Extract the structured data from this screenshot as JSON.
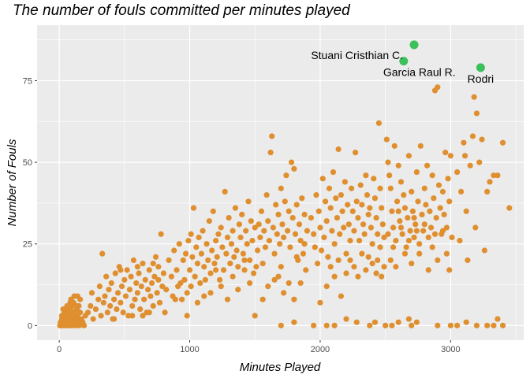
{
  "chart_data": {
    "type": "scatter",
    "title": "The number of fouls committed per minutes played",
    "xlabel": "Minutes Played",
    "ylabel": "Number of Fouls",
    "xlim": [
      -170,
      3560
    ],
    "ylim": [
      -4.5,
      92
    ],
    "xticks": [
      0,
      1000,
      2000,
      3000
    ],
    "yticks": [
      0,
      25,
      50,
      75
    ],
    "grid": true,
    "colors": {
      "points": "#df8f2f",
      "highlight": "#3cc059",
      "panel": "#ebebeb",
      "grid": "#ffffff"
    },
    "highlights": [
      {
        "name": "Stuani Cristhian  C.",
        "x": 2720,
        "y": 86,
        "label_anchor": "end",
        "label_pos": "left"
      },
      {
        "name": "Garcia Raul R.",
        "x": 2640,
        "y": 81,
        "label_anchor": "start",
        "label_pos": "below"
      },
      {
        "name": "Rodri",
        "x": 3230,
        "y": 79,
        "label_anchor": "middle",
        "label_pos": "below"
      }
    ],
    "points": [
      [
        5,
        0
      ],
      [
        10,
        1
      ],
      [
        15,
        0
      ],
      [
        20,
        2
      ],
      [
        25,
        0
      ],
      [
        30,
        1
      ],
      [
        35,
        3
      ],
      [
        40,
        0
      ],
      [
        45,
        2
      ],
      [
        50,
        1
      ],
      [
        55,
        0
      ],
      [
        60,
        4
      ],
      [
        65,
        2
      ],
      [
        70,
        0
      ],
      [
        75,
        1
      ],
      [
        80,
        3
      ],
      [
        85,
        0
      ],
      [
        90,
        5
      ],
      [
        95,
        2
      ],
      [
        100,
        1
      ],
      [
        105,
        0
      ],
      [
        110,
        3
      ],
      [
        115,
        4
      ],
      [
        120,
        2
      ],
      [
        125,
        1
      ],
      [
        130,
        0
      ],
      [
        135,
        5
      ],
      [
        140,
        3
      ],
      [
        145,
        2
      ],
      [
        150,
        6
      ],
      [
        155,
        0
      ],
      [
        160,
        4
      ],
      [
        170,
        2
      ],
      [
        180,
        1
      ],
      [
        190,
        0
      ],
      [
        200,
        3
      ],
      [
        30,
        5
      ],
      [
        60,
        6
      ],
      [
        90,
        8
      ],
      [
        110,
        7
      ],
      [
        140,
        9
      ],
      [
        50,
        3
      ],
      [
        70,
        5
      ],
      [
        100,
        4
      ],
      [
        130,
        6
      ],
      [
        160,
        8
      ],
      [
        80,
        1
      ],
      [
        120,
        2
      ],
      [
        150,
        1
      ],
      [
        40,
        4
      ],
      [
        20,
        3
      ],
      [
        85,
        7
      ],
      [
        115,
        9
      ],
      [
        65,
        3
      ],
      [
        95,
        6
      ],
      [
        220,
        4
      ],
      [
        240,
        6
      ],
      [
        250,
        10
      ],
      [
        260,
        2
      ],
      [
        280,
        5
      ],
      [
        300,
        8
      ],
      [
        310,
        12
      ],
      [
        320,
        3
      ],
      [
        340,
        7
      ],
      [
        350,
        9
      ],
      [
        360,
        15
      ],
      [
        370,
        4
      ],
      [
        380,
        11
      ],
      [
        390,
        6
      ],
      [
        400,
        13
      ],
      [
        410,
        2
      ],
      [
        420,
        8
      ],
      [
        430,
        16
      ],
      [
        440,
        5
      ],
      [
        450,
        10
      ],
      [
        460,
        18
      ],
      [
        470,
        7
      ],
      [
        480,
        12
      ],
      [
        490,
        4
      ],
      [
        500,
        14
      ],
      [
        510,
        9
      ],
      [
        520,
        17
      ],
      [
        530,
        3
      ],
      [
        540,
        11
      ],
      [
        550,
        15
      ],
      [
        560,
        6
      ],
      [
        570,
        20
      ],
      [
        580,
        8
      ],
      [
        590,
        13
      ],
      [
        600,
        10
      ],
      [
        610,
        16
      ],
      [
        620,
        5
      ],
      [
        630,
        12
      ],
      [
        640,
        19
      ],
      [
        650,
        8
      ],
      [
        660,
        14
      ],
      [
        670,
        4
      ],
      [
        680,
        11
      ],
      [
        690,
        17
      ],
      [
        700,
        9
      ],
      [
        710,
        13
      ],
      [
        720,
        6
      ],
      [
        730,
        15
      ],
      [
        740,
        21
      ],
      [
        750,
        10
      ],
      [
        760,
        18
      ],
      [
        770,
        7
      ],
      [
        780,
        28
      ],
      [
        790,
        12
      ],
      [
        800,
        16
      ],
      [
        330,
        22
      ],
      [
        420,
        2
      ],
      [
        470,
        17
      ],
      [
        560,
        3
      ],
      [
        600,
        18
      ],
      [
        640,
        3
      ],
      [
        690,
        4
      ],
      [
        720,
        19
      ],
      [
        760,
        14
      ],
      [
        810,
        4
      ],
      [
        820,
        11
      ],
      [
        840,
        20
      ],
      [
        860,
        15
      ],
      [
        870,
        9
      ],
      [
        880,
        23
      ],
      [
        900,
        17
      ],
      [
        910,
        12
      ],
      [
        920,
        25
      ],
      [
        940,
        8
      ],
      [
        950,
        20
      ],
      [
        960,
        14
      ],
      [
        970,
        22
      ],
      [
        980,
        10
      ],
      [
        990,
        26
      ],
      [
        1000,
        17
      ],
      [
        1010,
        12
      ],
      [
        1020,
        21
      ],
      [
        1030,
        36
      ],
      [
        1040,
        15
      ],
      [
        1050,
        24
      ],
      [
        1060,
        19
      ],
      [
        1070,
        27
      ],
      [
        1080,
        13
      ],
      [
        1090,
        22
      ],
      [
        1100,
        29
      ],
      [
        1110,
        18
      ],
      [
        1120,
        14
      ],
      [
        1130,
        25
      ],
      [
        1140,
        20
      ],
      [
        1150,
        32
      ],
      [
        1160,
        16
      ],
      [
        1170,
        23
      ],
      [
        1180,
        35
      ],
      [
        1190,
        19
      ],
      [
        1200,
        26
      ],
      [
        1210,
        21
      ],
      [
        1220,
        28
      ],
      [
        1230,
        14
      ],
      [
        1240,
        30
      ],
      [
        1250,
        24
      ],
      [
        1260,
        17
      ],
      [
        1270,
        41
      ],
      [
        1280,
        22
      ],
      [
        1290,
        27
      ],
      [
        1300,
        33
      ],
      [
        1310,
        19
      ],
      [
        1320,
        25
      ],
      [
        1330,
        29
      ],
      [
        1340,
        21
      ],
      [
        1350,
        36
      ],
      [
        1360,
        23
      ],
      [
        1370,
        18
      ],
      [
        1380,
        31
      ],
      [
        1390,
        27
      ],
      [
        1400,
        34
      ],
      [
        1410,
        22
      ],
      [
        1420,
        17
      ],
      [
        1430,
        29
      ],
      [
        1440,
        25
      ],
      [
        1450,
        38
      ],
      [
        1460,
        20
      ],
      [
        1470,
        32
      ],
      [
        1480,
        26
      ],
      [
        1490,
        16
      ],
      [
        1500,
        30
      ],
      [
        890,
        8
      ],
      [
        930,
        13
      ],
      [
        980,
        3
      ],
      [
        1010,
        28
      ],
      [
        1060,
        7
      ],
      [
        1110,
        9
      ],
      [
        1160,
        10
      ],
      [
        1200,
        17
      ],
      [
        1240,
        12
      ],
      [
        1290,
        8
      ],
      [
        1330,
        15
      ],
      [
        1370,
        11
      ],
      [
        1420,
        20
      ],
      [
        1460,
        13
      ],
      [
        1510,
        18
      ],
      [
        1520,
        23
      ],
      [
        1530,
        31
      ],
      [
        1540,
        27
      ],
      [
        1550,
        35
      ],
      [
        1560,
        19
      ],
      [
        1570,
        29
      ],
      [
        1580,
        24
      ],
      [
        1590,
        40
      ],
      [
        1600,
        32
      ],
      [
        1610,
        26
      ],
      [
        1620,
        53
      ],
      [
        1630,
        58
      ],
      [
        1640,
        30
      ],
      [
        1650,
        22
      ],
      [
        1660,
        37
      ],
      [
        1670,
        28
      ],
      [
        1680,
        34
      ],
      [
        1690,
        25
      ],
      [
        1700,
        42
      ],
      [
        1710,
        31
      ],
      [
        1720,
        27
      ],
      [
        1730,
        38
      ],
      [
        1740,
        46
      ],
      [
        1750,
        29
      ],
      [
        1760,
        35
      ],
      [
        1770,
        24
      ],
      [
        1780,
        50
      ],
      [
        1790,
        33
      ],
      [
        1800,
        48
      ],
      [
        1810,
        28
      ],
      [
        1820,
        37
      ],
      [
        1830,
        20
      ],
      [
        1840,
        31
      ],
      [
        1850,
        26
      ],
      [
        1860,
        39
      ],
      [
        1870,
        22
      ],
      [
        1880,
        34
      ],
      [
        1890,
        17
      ],
      [
        1900,
        29
      ],
      [
        1500,
        3
      ],
      [
        1560,
        8
      ],
      [
        1600,
        12
      ],
      [
        1680,
        15
      ],
      [
        1720,
        10
      ],
      [
        1760,
        13
      ],
      [
        1800,
        8
      ],
      [
        1820,
        21
      ],
      [
        1850,
        13
      ],
      [
        1880,
        25
      ],
      [
        1700,
        18
      ],
      [
        1650,
        14
      ],
      [
        1930,
        33
      ],
      [
        1950,
        28
      ],
      [
        1960,
        24
      ],
      [
        1970,
        40
      ],
      [
        1980,
        19
      ],
      [
        1990,
        35
      ],
      [
        2000,
        30
      ],
      [
        2010,
        23
      ],
      [
        2020,
        45
      ],
      [
        2030,
        27
      ],
      [
        2040,
        38
      ],
      [
        2050,
        32
      ],
      [
        2060,
        21
      ],
      [
        2070,
        42
      ],
      [
        2080,
        36
      ],
      [
        2090,
        29
      ],
      [
        2100,
        47
      ],
      [
        2110,
        25
      ],
      [
        2120,
        39
      ],
      [
        2130,
        33
      ],
      [
        2140,
        54
      ],
      [
        2150,
        28
      ],
      [
        2160,
        40
      ],
      [
        2170,
        35
      ],
      [
        2180,
        30
      ],
      [
        2190,
        44
      ],
      [
        2200,
        22
      ],
      [
        2210,
        37
      ],
      [
        2220,
        31
      ],
      [
        2230,
        26
      ],
      [
        2240,
        42
      ],
      [
        2250,
        35
      ],
      [
        2260,
        29
      ],
      [
        2270,
        53
      ],
      [
        2280,
        38
      ],
      [
        2290,
        33
      ],
      [
        2300,
        26
      ],
      [
        2310,
        43
      ],
      [
        2320,
        37
      ],
      [
        2330,
        31
      ],
      [
        2340,
        28
      ],
      [
        2350,
        46
      ],
      [
        2360,
        40
      ],
      [
        2370,
        34
      ],
      [
        2380,
        36
      ],
      [
        2390,
        30
      ],
      [
        2400,
        25
      ],
      [
        2410,
        45
      ],
      [
        2420,
        39
      ],
      [
        2430,
        33
      ],
      [
        2440,
        28
      ],
      [
        2450,
        62
      ],
      [
        2460,
        42
      ],
      [
        2470,
        36
      ],
      [
        2480,
        31
      ],
      [
        2490,
        27
      ],
      [
        1950,
        0
      ],
      [
        2000,
        7
      ],
      [
        2050,
        12
      ],
      [
        2080,
        18
      ],
      [
        2110,
        15
      ],
      [
        2140,
        20
      ],
      [
        2160,
        9
      ],
      [
        2200,
        16
      ],
      [
        2230,
        20
      ],
      [
        2260,
        18
      ],
      [
        2290,
        15
      ],
      [
        2320,
        22
      ],
      [
        2350,
        17
      ],
      [
        2370,
        21
      ],
      [
        2400,
        19
      ],
      [
        2430,
        16
      ],
      [
        2440,
        20
      ],
      [
        2460,
        24
      ],
      [
        2470,
        15
      ],
      [
        2490,
        18
      ],
      [
        2510,
        57
      ],
      [
        2520,
        50
      ],
      [
        2530,
        46
      ],
      [
        2540,
        42
      ],
      [
        2550,
        35
      ],
      [
        2560,
        30
      ],
      [
        2570,
        55
      ],
      [
        2580,
        26
      ],
      [
        2590,
        38
      ],
      [
        2600,
        49
      ],
      [
        2610,
        32
      ],
      [
        2620,
        44
      ],
      [
        2630,
        28
      ],
      [
        2640,
        40
      ],
      [
        2650,
        36
      ],
      [
        2660,
        24
      ],
      [
        2670,
        33
      ],
      [
        2680,
        52
      ],
      [
        2690,
        29
      ],
      [
        2700,
        41
      ],
      [
        2710,
        35
      ],
      [
        2720,
        27
      ],
      [
        2730,
        31
      ],
      [
        2740,
        47
      ],
      [
        2750,
        38
      ],
      [
        2760,
        25
      ],
      [
        2770,
        55
      ],
      [
        2780,
        34
      ],
      [
        2790,
        29
      ],
      [
        2800,
        42
      ],
      [
        2810,
        37
      ],
      [
        2820,
        49
      ],
      [
        2830,
        27
      ],
      [
        2840,
        35
      ],
      [
        2850,
        30
      ],
      [
        2860,
        46
      ],
      [
        2870,
        39
      ],
      [
        2880,
        72
      ],
      [
        2890,
        33
      ],
      [
        2900,
        73
      ],
      [
        2910,
        43
      ],
      [
        2920,
        36
      ],
      [
        2930,
        28
      ],
      [
        2940,
        41
      ],
      [
        2950,
        34
      ],
      [
        2960,
        53
      ],
      [
        2970,
        30
      ],
      [
        2980,
        45
      ],
      [
        2990,
        38
      ],
      [
        3000,
        52
      ],
      [
        3010,
        27
      ],
      [
        2520,
        28
      ],
      [
        2540,
        20
      ],
      [
        2560,
        24
      ],
      [
        2580,
        18
      ],
      [
        2600,
        35
      ],
      [
        2620,
        30
      ],
      [
        2650,
        22
      ],
      [
        2680,
        26
      ],
      [
        2700,
        19
      ],
      [
        2720,
        33
      ],
      [
        2740,
        29
      ],
      [
        2760,
        22
      ],
      [
        2800,
        31
      ],
      [
        2830,
        17
      ],
      [
        2860,
        24
      ],
      [
        2880,
        28
      ],
      [
        2900,
        20
      ],
      [
        2940,
        29
      ],
      [
        2970,
        22
      ],
      [
        2990,
        17
      ],
      [
        3050,
        47
      ],
      [
        3080,
        41
      ],
      [
        3100,
        56
      ],
      [
        3110,
        52
      ],
      [
        3120,
        35
      ],
      [
        3150,
        49
      ],
      [
        3170,
        58
      ],
      [
        3180,
        70
      ],
      [
        3200,
        65
      ],
      [
        3220,
        50
      ],
      [
        3240,
        57
      ],
      [
        3260,
        23
      ],
      [
        3280,
        41
      ],
      [
        3300,
        44
      ],
      [
        3330,
        46
      ],
      [
        3360,
        46
      ],
      [
        3400,
        56
      ],
      [
        3450,
        36
      ],
      [
        3070,
        26
      ],
      [
        3130,
        20
      ],
      [
        3190,
        30
      ],
      [
        2200,
        2
      ],
      [
        2280,
        1
      ],
      [
        2380,
        0
      ],
      [
        2420,
        1
      ],
      [
        2500,
        0
      ],
      [
        2550,
        0
      ],
      [
        2600,
        1
      ],
      [
        2680,
        2
      ],
      [
        2700,
        0
      ],
      [
        2740,
        1
      ],
      [
        2900,
        0
      ],
      [
        3000,
        0
      ],
      [
        3050,
        0
      ],
      [
        3120,
        1
      ],
      [
        3200,
        0
      ],
      [
        3280,
        0
      ],
      [
        3330,
        0
      ],
      [
        3360,
        2
      ],
      [
        3400,
        0
      ],
      [
        2110,
        0
      ],
      [
        2050,
        0
      ],
      [
        1800,
        1
      ],
      [
        1700,
        0
      ]
    ]
  }
}
